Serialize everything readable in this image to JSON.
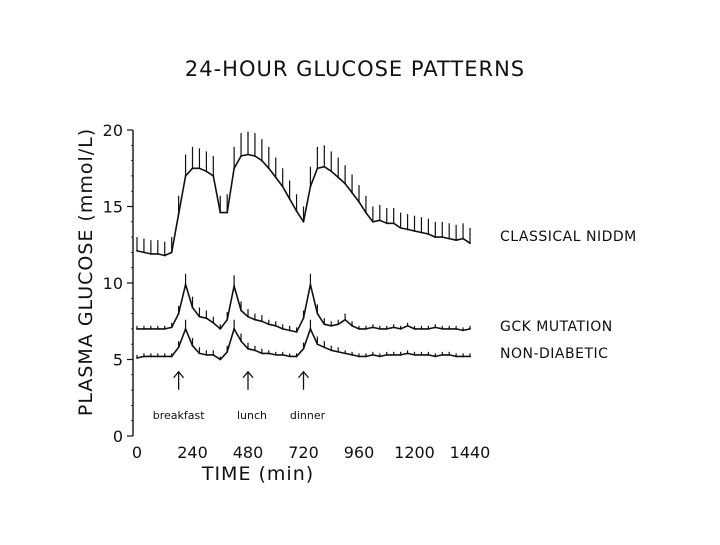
{
  "chart_data": {
    "type": "line",
    "title": "24-HOUR GLUCOSE PATTERNS",
    "xlabel": "TIME (min)",
    "ylabel": "PLASMA GLUCOSE (mmol/L)",
    "xlim": [
      0,
      1440
    ],
    "ylim": [
      0,
      20
    ],
    "x_ticks": [
      0,
      240,
      480,
      720,
      960,
      1200,
      1440
    ],
    "y_ticks": [
      0,
      5,
      10,
      15,
      20
    ],
    "grid": false,
    "legend": "labels at right end of each line",
    "series": [
      {
        "name": "CLASSICAL NIDDM",
        "x": [
          0,
          30,
          60,
          90,
          120,
          150,
          180,
          210,
          240,
          270,
          300,
          330,
          360,
          390,
          420,
          450,
          480,
          510,
          540,
          570,
          600,
          630,
          660,
          690,
          720,
          750,
          780,
          810,
          840,
          870,
          900,
          930,
          960,
          990,
          1020,
          1050,
          1080,
          1110,
          1140,
          1170,
          1200,
          1230,
          1260,
          1290,
          1320,
          1350,
          1380,
          1410,
          1440
        ],
        "values": [
          12.1,
          12.0,
          11.9,
          11.9,
          11.8,
          12.0,
          14.5,
          17.0,
          17.5,
          17.5,
          17.3,
          17.0,
          14.6,
          14.6,
          17.5,
          18.3,
          18.4,
          18.3,
          18.0,
          17.5,
          16.9,
          16.3,
          15.5,
          14.7,
          14.0,
          16.3,
          17.5,
          17.6,
          17.3,
          16.9,
          16.5,
          15.9,
          15.3,
          14.6,
          14.0,
          14.1,
          13.9,
          13.9,
          13.6,
          13.5,
          13.4,
          13.3,
          13.2,
          13.0,
          13.0,
          12.9,
          12.8,
          12.9,
          12.6
        ],
        "err": [
          0.9,
          0.9,
          0.9,
          0.9,
          0.9,
          1.0,
          1.2,
          1.4,
          1.4,
          1.3,
          1.3,
          1.3,
          1.1,
          1.2,
          1.4,
          1.5,
          1.5,
          1.5,
          1.4,
          1.4,
          1.3,
          1.2,
          1.2,
          1.1,
          1.0,
          1.3,
          1.4,
          1.4,
          1.3,
          1.3,
          1.2,
          1.2,
          1.1,
          1.1,
          1.0,
          1.0,
          1.0,
          1.0,
          1.0,
          1.0,
          1.0,
          1.0,
          1.0,
          1.0,
          1.0,
          1.0,
          1.0,
          1.0,
          1.0
        ]
      },
      {
        "name": "GCK MUTATION",
        "x": [
          0,
          30,
          60,
          90,
          120,
          150,
          180,
          210,
          240,
          270,
          300,
          330,
          360,
          390,
          420,
          450,
          480,
          510,
          540,
          570,
          600,
          630,
          660,
          690,
          720,
          750,
          780,
          810,
          840,
          870,
          900,
          930,
          960,
          990,
          1020,
          1050,
          1080,
          1110,
          1140,
          1170,
          1200,
          1230,
          1260,
          1290,
          1320,
          1350,
          1380,
          1410,
          1440
        ],
        "values": [
          7.0,
          7.0,
          7.0,
          7.0,
          7.0,
          7.1,
          8.0,
          9.9,
          8.4,
          7.8,
          7.7,
          7.4,
          7.0,
          7.6,
          9.8,
          8.2,
          7.8,
          7.6,
          7.5,
          7.3,
          7.2,
          7.0,
          6.9,
          6.8,
          7.7,
          9.9,
          8.0,
          7.3,
          7.2,
          7.3,
          7.6,
          7.2,
          7.0,
          7.0,
          7.1,
          7.0,
          7.0,
          7.1,
          7.0,
          7.2,
          7.0,
          7.0,
          7.0,
          7.1,
          7.0,
          7.0,
          7.0,
          6.9,
          7.0
        ],
        "err": [
          0.2,
          0.2,
          0.2,
          0.2,
          0.2,
          0.3,
          0.5,
          0.7,
          0.7,
          0.6,
          0.5,
          0.4,
          0.3,
          0.5,
          0.7,
          0.6,
          0.5,
          0.4,
          0.4,
          0.3,
          0.3,
          0.3,
          0.3,
          0.3,
          0.5,
          0.7,
          0.6,
          0.4,
          0.3,
          0.3,
          0.4,
          0.3,
          0.2,
          0.2,
          0.2,
          0.2,
          0.2,
          0.2,
          0.2,
          0.2,
          0.2,
          0.2,
          0.2,
          0.2,
          0.2,
          0.2,
          0.2,
          0.2,
          0.2
        ]
      },
      {
        "name": "NON-DIABETIC",
        "x": [
          0,
          30,
          60,
          90,
          120,
          150,
          180,
          210,
          240,
          270,
          300,
          330,
          360,
          390,
          420,
          450,
          480,
          510,
          540,
          570,
          600,
          630,
          660,
          690,
          720,
          750,
          780,
          810,
          840,
          870,
          900,
          930,
          960,
          990,
          1020,
          1050,
          1080,
          1110,
          1140,
          1170,
          1200,
          1230,
          1260,
          1290,
          1320,
          1350,
          1380,
          1410,
          1440
        ],
        "values": [
          5.1,
          5.2,
          5.2,
          5.2,
          5.2,
          5.2,
          5.8,
          7.0,
          5.9,
          5.4,
          5.3,
          5.3,
          5.0,
          5.5,
          7.0,
          6.2,
          5.7,
          5.6,
          5.4,
          5.4,
          5.3,
          5.3,
          5.2,
          5.2,
          5.7,
          7.0,
          6.0,
          5.8,
          5.6,
          5.5,
          5.4,
          5.3,
          5.2,
          5.2,
          5.3,
          5.2,
          5.3,
          5.3,
          5.3,
          5.4,
          5.3,
          5.3,
          5.3,
          5.2,
          5.3,
          5.3,
          5.2,
          5.2,
          5.2
        ],
        "err": [
          0.2,
          0.2,
          0.2,
          0.2,
          0.2,
          0.2,
          0.4,
          0.6,
          0.5,
          0.4,
          0.3,
          0.3,
          0.2,
          0.4,
          0.6,
          0.5,
          0.4,
          0.3,
          0.3,
          0.2,
          0.2,
          0.2,
          0.2,
          0.2,
          0.4,
          0.6,
          0.5,
          0.4,
          0.3,
          0.3,
          0.2,
          0.2,
          0.2,
          0.2,
          0.2,
          0.2,
          0.2,
          0.2,
          0.2,
          0.2,
          0.2,
          0.2,
          0.2,
          0.2,
          0.2,
          0.2,
          0.2,
          0.2,
          0.2
        ]
      }
    ],
    "annotations": [
      {
        "text": "breakfast",
        "x": 180,
        "arrow_to_y": 4.2
      },
      {
        "text": "lunch",
        "x": 480,
        "arrow_to_y": 4.2
      },
      {
        "text": "dinner",
        "x": 720,
        "arrow_to_y": 4.2
      }
    ]
  }
}
